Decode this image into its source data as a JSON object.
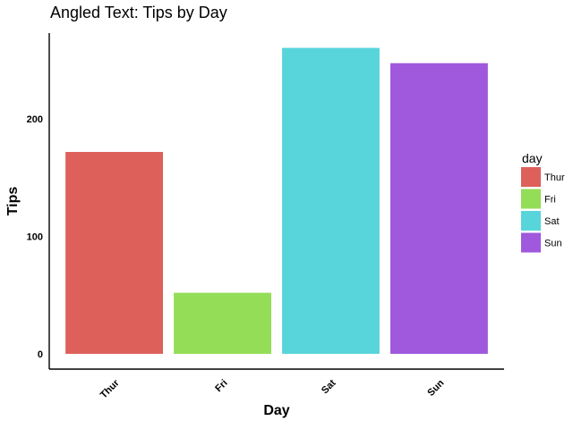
{
  "chart_data": {
    "type": "bar",
    "title": "Angled Text: Tips by Day",
    "xlabel": "Day",
    "ylabel": "Tips",
    "categories": [
      "Thur",
      "Fri",
      "Sat",
      "Sun"
    ],
    "values": [
      171.83,
      51.96,
      260.4,
      247.39
    ],
    "colors": [
      "#dd605a",
      "#93dd57",
      "#58d4db",
      "#a058dd"
    ],
    "ylim": [
      -13,
      273
    ],
    "yticks": [
      0,
      100,
      200
    ],
    "ytick_labels": [
      "0",
      "100",
      "200"
    ],
    "xtick_rotation": -45,
    "grid": false,
    "legend": {
      "title": "day",
      "placement": "right",
      "entries": [
        "Thur",
        "Fri",
        "Sat",
        "Sun"
      ]
    }
  }
}
